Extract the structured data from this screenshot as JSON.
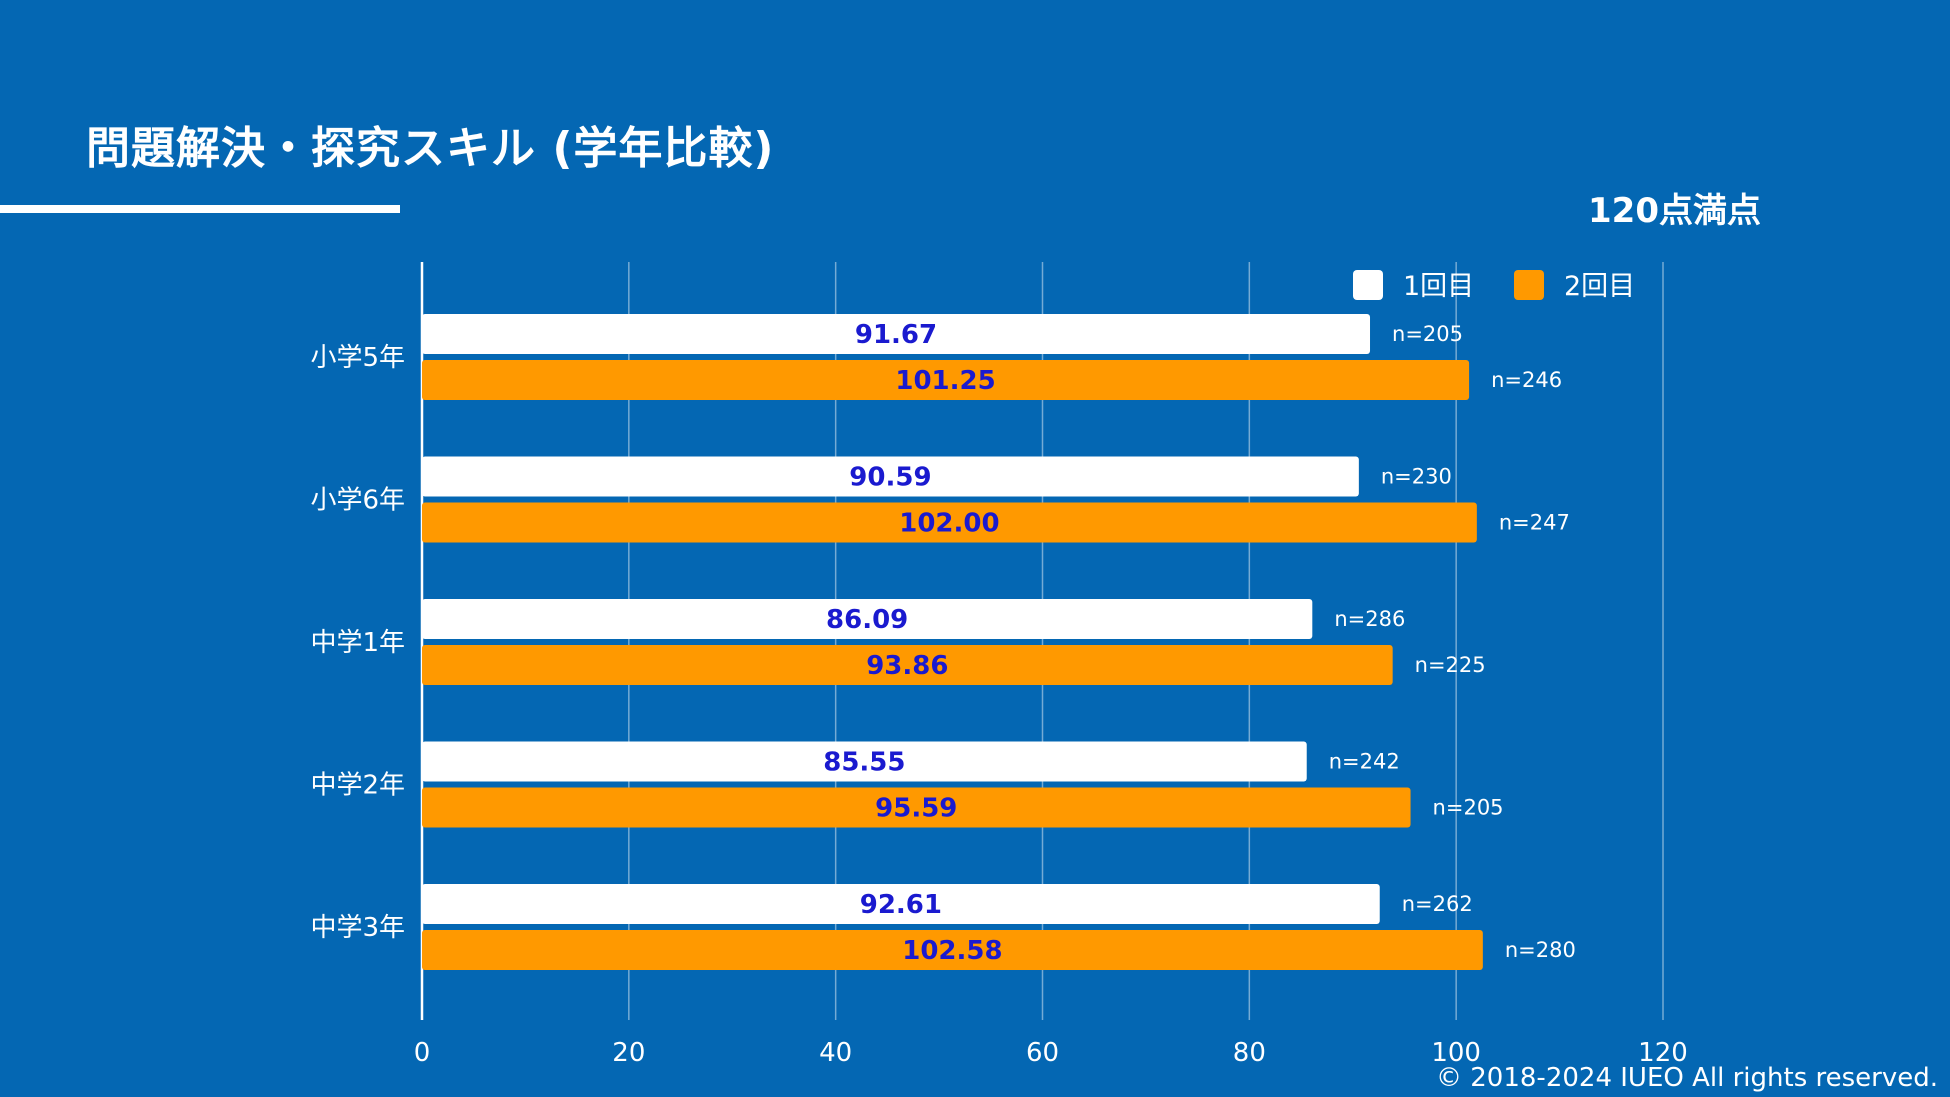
{
  "header": {
    "title": "問題解決・探究スキル (学年比較)",
    "score_note": "120点満点"
  },
  "footer": {
    "copyright": "© 2018-2024 IUEO All rights reserved."
  },
  "colors": {
    "background": "#0467b3",
    "series1": "#ffffff",
    "series2": "#ff9900",
    "data_label": "#1a1acf"
  },
  "chart_data": {
    "type": "bar",
    "orientation": "horizontal",
    "title": "問題解決・探究スキル (学年比較)",
    "categories": [
      "小学5年",
      "小学6年",
      "中学1年",
      "中学2年",
      "中学3年"
    ],
    "series": [
      {
        "name": "1回目",
        "values": [
          91.67,
          90.59,
          86.09,
          85.55,
          92.61
        ],
        "labels": [
          "91.67",
          "90.59",
          "86.09",
          "85.55",
          "92.61"
        ],
        "n_labels": [
          "n=205",
          "n=230",
          "n=286",
          "n=242",
          "n=262"
        ]
      },
      {
        "name": "2回目",
        "values": [
          101.25,
          102.0,
          93.86,
          95.59,
          102.58
        ],
        "labels": [
          "101.25",
          "102.00",
          "93.86",
          "95.59",
          "102.58"
        ],
        "n_labels": [
          "n=246",
          "n=247",
          "n=225",
          "n=205",
          "n=280"
        ]
      }
    ],
    "xlim": [
      0,
      120
    ],
    "x_ticks": [
      "0",
      "20",
      "40",
      "60",
      "80",
      "100",
      "120"
    ],
    "grid": true,
    "legend": "top-right",
    "xlabel": "",
    "ylabel": ""
  }
}
